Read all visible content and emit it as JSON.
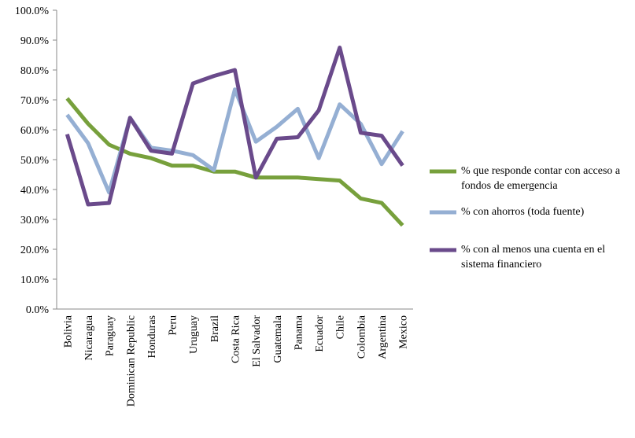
{
  "chart_data": {
    "type": "line",
    "categories": [
      "Bolivia",
      "Nicaragua",
      "Paraguay",
      "Dominican Republic",
      "Honduras",
      "Peru",
      "Uruguay",
      "Brazil",
      "Costa Rica",
      "El Salvador",
      "Guatemala",
      "Panama",
      "Ecuador",
      "Chile",
      "Colombia",
      "Argentina",
      "Mexico"
    ],
    "series": [
      {
        "name": "% que responde contar con acceso a fondos de emergencia",
        "color": "#77a03c",
        "values": [
          70.5,
          62,
          55,
          52,
          50.5,
          48,
          48,
          46,
          46,
          44,
          44,
          44,
          43.5,
          43,
          37,
          35.5,
          28
        ]
      },
      {
        "name": "% con ahorros (toda fuente)",
        "color": "#95afd3",
        "values": [
          65,
          55.5,
          39,
          64,
          54,
          53,
          51.5,
          46.5,
          73.5,
          56,
          61,
          67,
          50.5,
          68.5,
          62,
          48.5,
          59.5
        ]
      },
      {
        "name": "% con al menos una cuenta en el sistema financiero",
        "color": "#6a4a8b",
        "values": [
          58.5,
          35,
          35.5,
          64,
          53,
          52,
          75.5,
          78,
          80,
          44,
          57,
          57.5,
          66.5,
          87.5,
          59,
          58,
          48
        ]
      }
    ],
    "ylim": [
      0,
      100
    ],
    "yticks": [
      {
        "value": 0,
        "label": "0.0%"
      },
      {
        "value": 10,
        "label": "10.0%"
      },
      {
        "value": 20,
        "label": "20.0%"
      },
      {
        "value": 30,
        "label": "30.0%"
      },
      {
        "value": 40,
        "label": "40.0%"
      },
      {
        "value": 50,
        "label": "50.0%"
      },
      {
        "value": 60,
        "label": "60.0%"
      },
      {
        "value": 70,
        "label": "70.0%"
      },
      {
        "value": 80,
        "label": "80.0%"
      },
      {
        "value": 90,
        "label": "90.0%"
      },
      {
        "value": 100,
        "label": "100.0%"
      }
    ],
    "legend": "right"
  }
}
